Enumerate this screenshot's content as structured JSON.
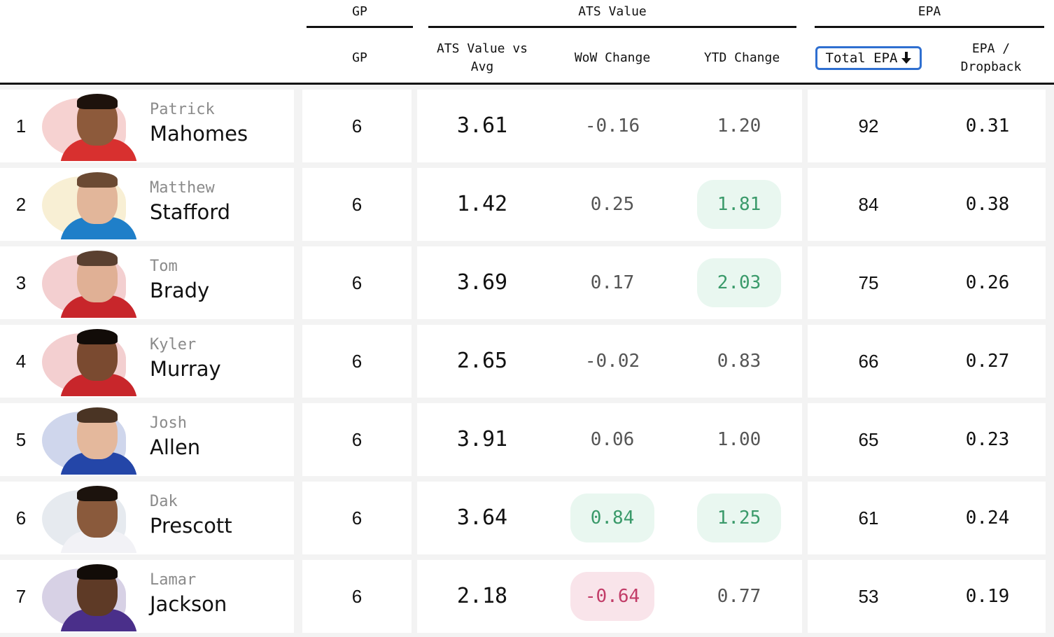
{
  "group_headers": {
    "gp": "GP",
    "ats": "ATS Value",
    "epa": "EPA"
  },
  "columns": {
    "gp": "GP",
    "ats_vs_avg": "ATS Value vs Avg",
    "wow": "WoW Change",
    "ytd": "YTD Change",
    "total_epa": "Total EPA",
    "epa_dropback": "EPA / Dropback"
  },
  "sort": {
    "column": "total_epa",
    "direction": "descending",
    "icon": "arrow-down-icon"
  },
  "colors": {
    "accent": "#2f6fd0",
    "positive_bg": "#e9f7f0",
    "positive_text": "#3a9a6a",
    "negative_bg": "#f9e4ea",
    "negative_text": "#c23c68"
  },
  "players": [
    {
      "rank": "1",
      "first": "Patrick",
      "last": "Mahomes",
      "gp": "6",
      "ats": "3.61",
      "wow": "-0.16",
      "wow_hl": "",
      "ytd": "1.20",
      "ytd_hl": "",
      "epa": "92",
      "epa_db": "0.31",
      "jersey": "#d8302f",
      "logo": "#d8302f",
      "skin": "#8d5a3b",
      "hair": "#1d120c",
      "collar": "#ffffff"
    },
    {
      "rank": "2",
      "first": "Matthew",
      "last": "Stafford",
      "gp": "6",
      "ats": "1.42",
      "wow": "0.25",
      "wow_hl": "",
      "ytd": "1.81",
      "ytd_hl": "pos",
      "epa": "84",
      "epa_db": "0.38",
      "jersey": "#1f7fc9",
      "logo": "#e0b63a",
      "skin": "#e2b69a",
      "hair": "#6b4a33",
      "collar": "#d7d7d7"
    },
    {
      "rank": "3",
      "first": "Tom",
      "last": "Brady",
      "gp": "6",
      "ats": "3.69",
      "wow": "0.17",
      "wow_hl": "",
      "ytd": "2.03",
      "ytd_hl": "pos",
      "epa": "75",
      "epa_db": "0.26",
      "jersey": "#c8262b",
      "logo": "#c8262b",
      "skin": "#e0b095",
      "hair": "#5a4030",
      "collar": "#2b2b2b"
    },
    {
      "rank": "4",
      "first": "Kyler",
      "last": "Murray",
      "gp": "6",
      "ats": "2.65",
      "wow": "-0.02",
      "wow_hl": "",
      "ytd": "0.83",
      "ytd_hl": "",
      "epa": "66",
      "epa_db": "0.27",
      "jersey": "#c8262b",
      "logo": "#c8262b",
      "skin": "#7a4a30",
      "hair": "#120c08",
      "collar": "#ffffff"
    },
    {
      "rank": "5",
      "first": "Josh",
      "last": "Allen",
      "gp": "6",
      "ats": "3.91",
      "wow": "0.06",
      "wow_hl": "",
      "ytd": "1.00",
      "ytd_hl": "",
      "epa": "65",
      "epa_db": "0.23",
      "jersey": "#2446a8",
      "logo": "#2446a8",
      "skin": "#e4b89c",
      "hair": "#4a3424",
      "collar": "#d93a3a"
    },
    {
      "rank": "6",
      "first": "Dak",
      "last": "Prescott",
      "gp": "6",
      "ats": "3.64",
      "wow": "0.84",
      "wow_hl": "pos",
      "ytd": "1.25",
      "ytd_hl": "pos",
      "epa": "61",
      "epa_db": "0.24",
      "jersey": "#f2f2f6",
      "logo": "#8ea0b8",
      "skin": "#8a5a3c",
      "hair": "#1c130d",
      "collar": "#2a3a6a"
    },
    {
      "rank": "7",
      "first": "Lamar",
      "last": "Jackson",
      "gp": "6",
      "ats": "2.18",
      "wow": "-0.64",
      "wow_hl": "neg",
      "ytd": "0.77",
      "ytd_hl": "",
      "epa": "53",
      "epa_db": "0.19",
      "jersey": "#4a2f8a",
      "logo": "#4a2f8a",
      "skin": "#5e3a26",
      "hair": "#120c08",
      "collar": "#1a1a1a"
    }
  ]
}
